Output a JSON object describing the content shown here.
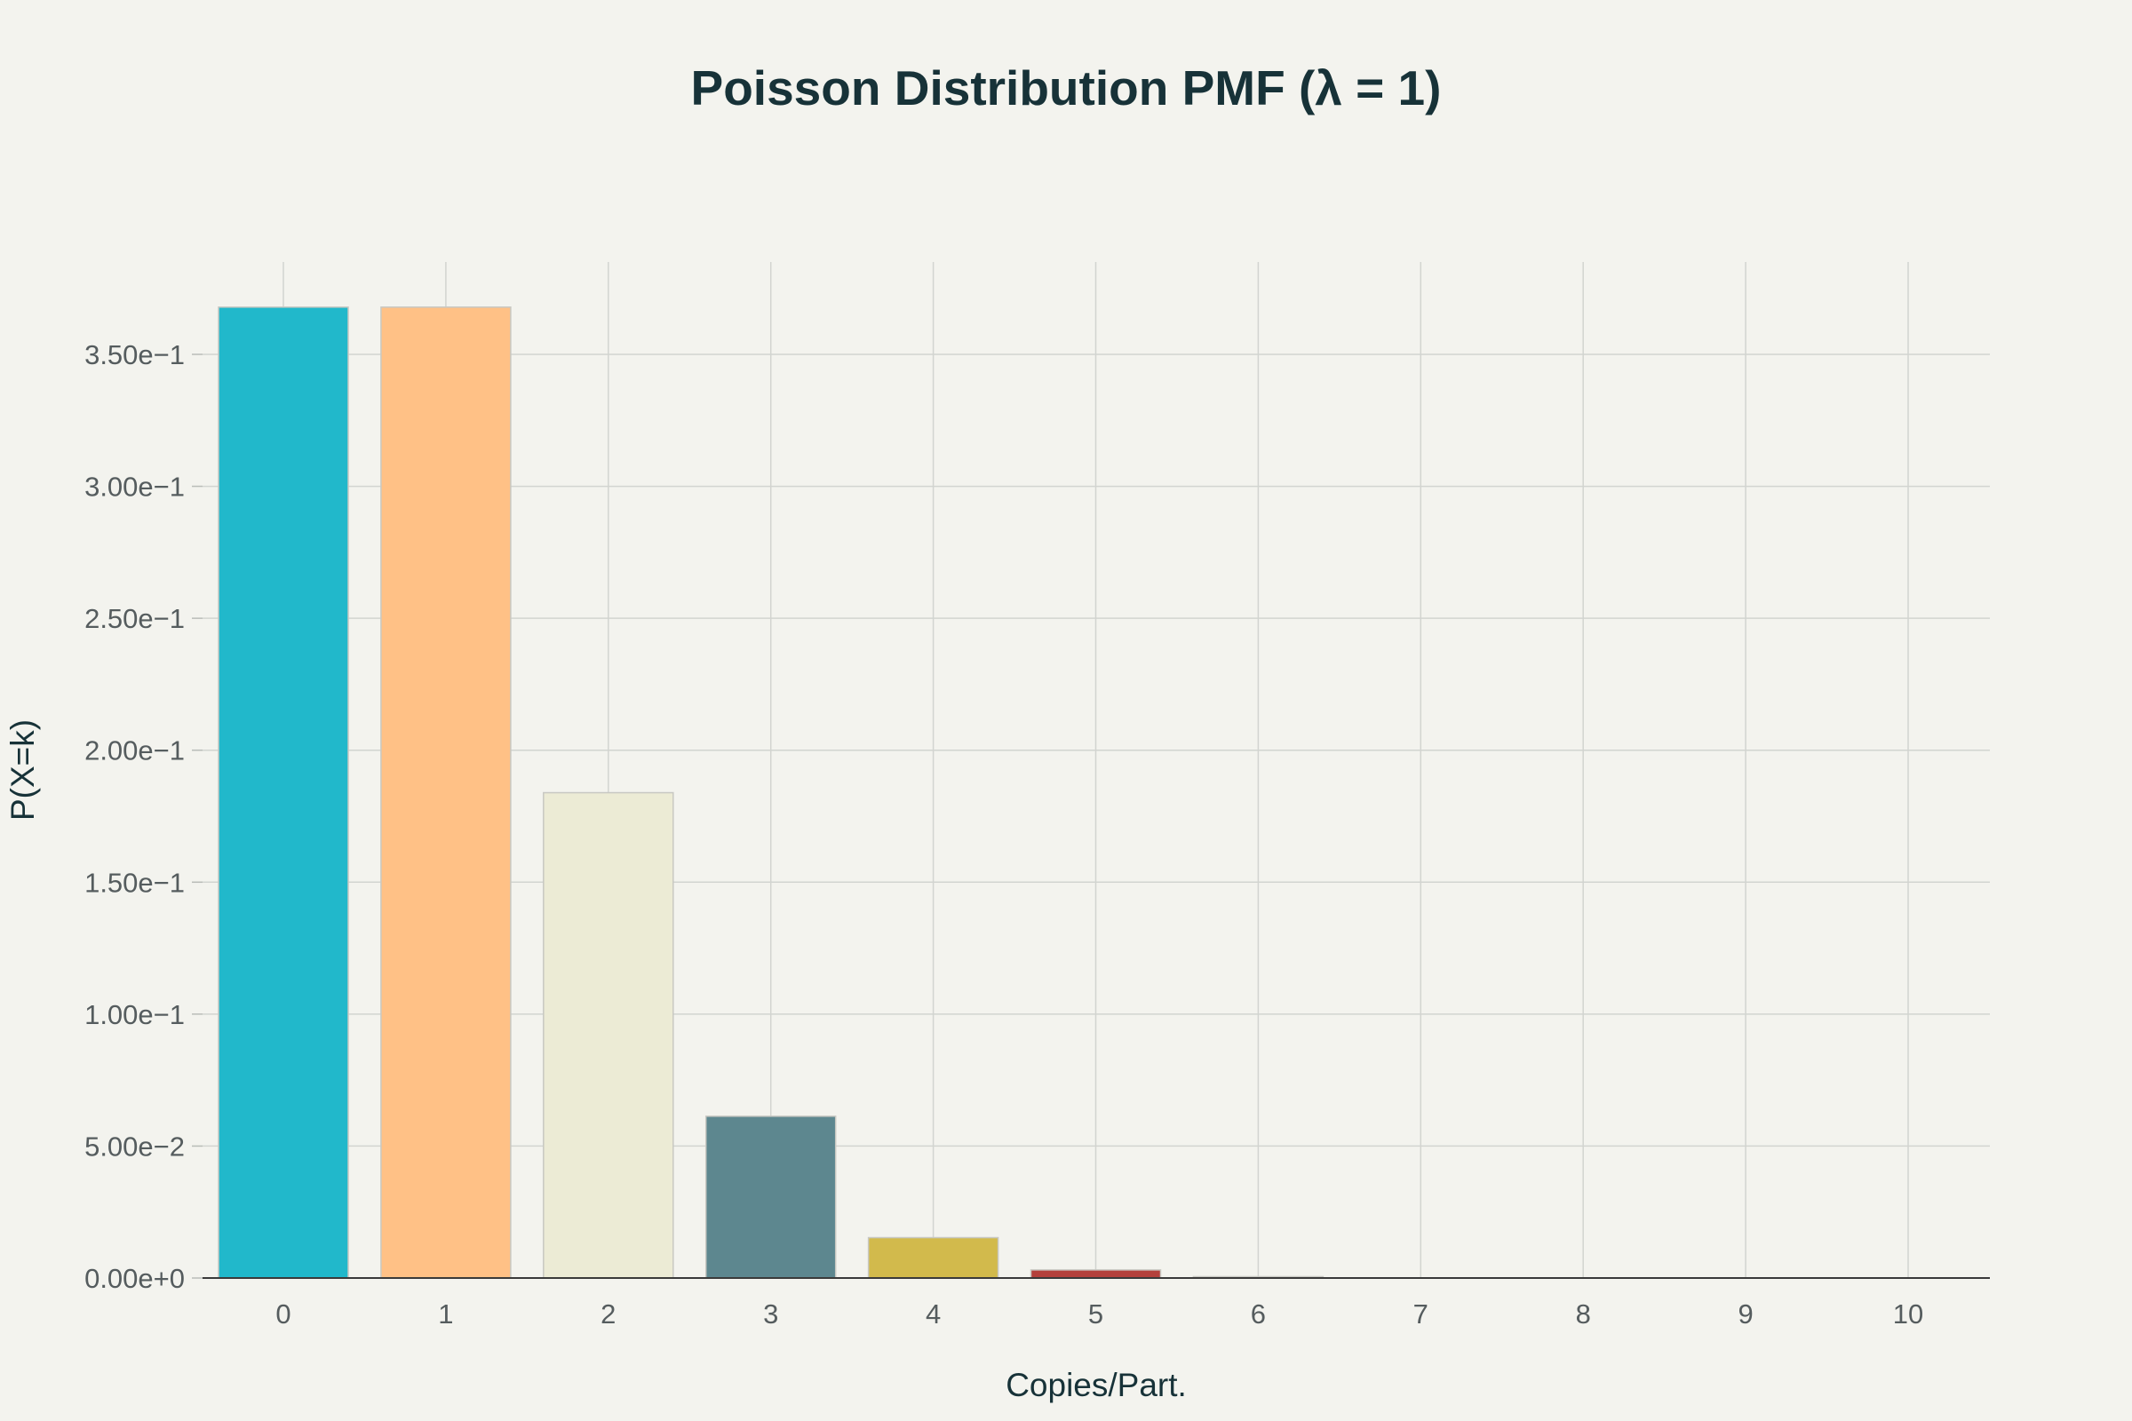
{
  "chart_data": {
    "type": "bar",
    "title": "Poisson Distribution PMF (λ = 1)",
    "xlabel": "Copies/Part.",
    "ylabel": "P(X=k)",
    "categories": [
      "0",
      "1",
      "2",
      "3",
      "4",
      "5",
      "6",
      "7",
      "8",
      "9",
      "10"
    ],
    "values": [
      0.3679,
      0.3679,
      0.1839,
      0.0613,
      0.0153,
      0.00307,
      0.000511,
      7.3e-05,
      9.1e-06,
      1.01e-06,
      1.01e-07
    ],
    "colors": [
      "#21b8cb",
      "#ffc186",
      "#ecebd5",
      "#5d878f",
      "#d2ba4c",
      "#b4413c",
      "#964325",
      "#944454",
      "#13343b",
      "#db4545",
      "#1fb8cd"
    ],
    "ylim": [
      0,
      0.385
    ],
    "yticks": [
      0,
      0.05,
      0.1,
      0.15,
      0.2,
      0.25,
      0.3,
      0.35
    ],
    "ytick_labels": [
      "0.00e+0",
      "5.00e−2",
      "1.00e−1",
      "1.50e−1",
      "2.00e−1",
      "2.50e−1",
      "3.00e−1",
      "3.50e−1"
    ],
    "grid": true,
    "legend": "none"
  }
}
